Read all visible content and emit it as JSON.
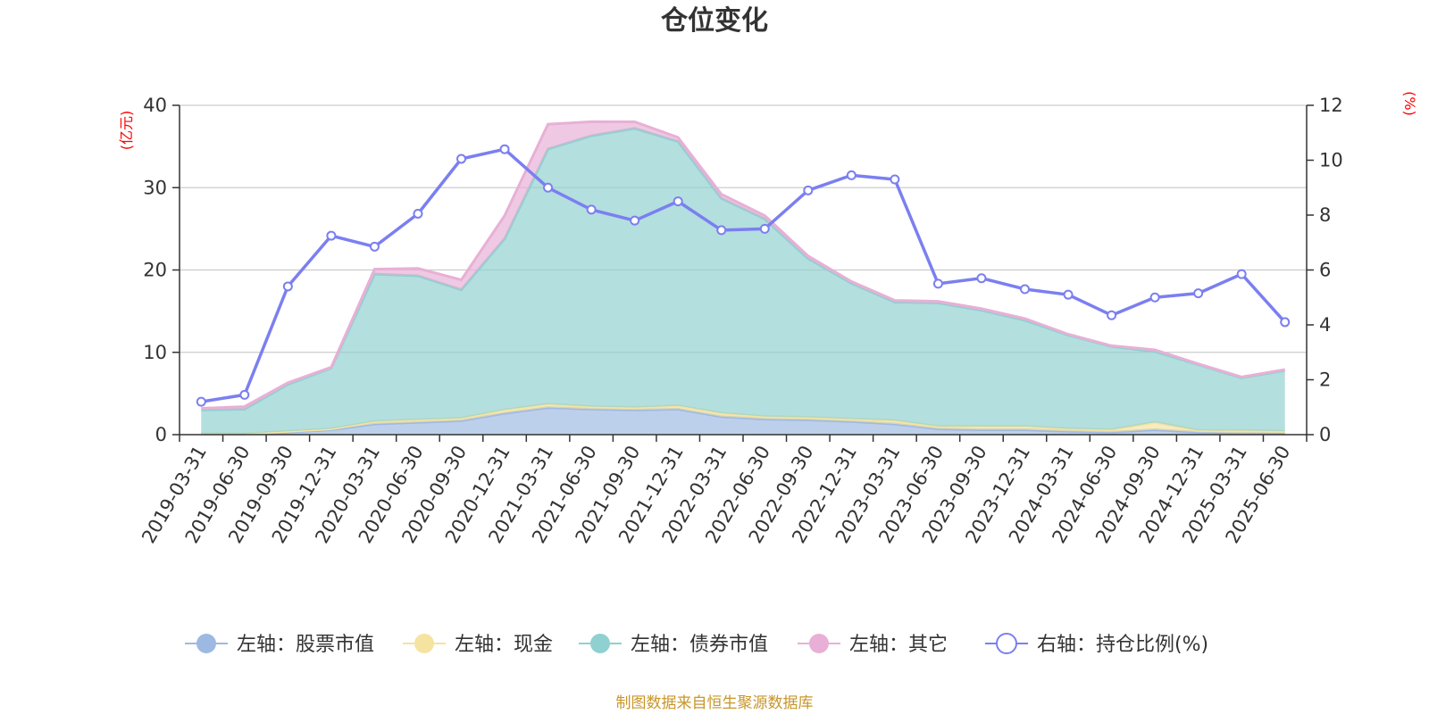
{
  "chart_data": {
    "type": "area",
    "title": "仓位变化",
    "left_unit": "(亿元)",
    "right_unit": "(%)",
    "source": "制图数据来自恒生聚源数据库",
    "x": [
      "2019-03-31",
      "2019-06-30",
      "2019-09-30",
      "2019-12-31",
      "2020-03-31",
      "2020-06-30",
      "2020-09-30",
      "2020-12-31",
      "2021-03-31",
      "2021-06-30",
      "2021-09-30",
      "2021-12-31",
      "2022-03-31",
      "2022-06-30",
      "2022-09-30",
      "2022-12-31",
      "2023-03-31",
      "2023-06-30",
      "2023-09-30",
      "2023-12-31",
      "2024-03-31",
      "2024-06-30",
      "2024-09-30",
      "2024-12-31",
      "2025-03-31",
      "2025-06-30"
    ],
    "yleft": {
      "lim": [
        0,
        40
      ],
      "ticks": [
        "0",
        "10",
        "20",
        "30",
        "40"
      ]
    },
    "yright": {
      "lim": [
        0,
        12
      ],
      "ticks": [
        "0",
        "2",
        "4",
        "6",
        "8",
        "10",
        "12"
      ]
    },
    "grid": true,
    "legend_position": "bottom",
    "series": [
      {
        "name": "左轴：股票市值",
        "axis": "left",
        "kind": "stacked-area",
        "color": "#9db9e2",
        "values": [
          0.1,
          0.1,
          0.3,
          0.6,
          1.3,
          1.5,
          1.7,
          2.6,
          3.3,
          3.1,
          3.0,
          3.1,
          2.2,
          1.9,
          1.8,
          1.6,
          1.3,
          0.7,
          0.6,
          0.6,
          0.4,
          0.3,
          0.6,
          0.3,
          0.2,
          0.2
        ]
      },
      {
        "name": "左轴：现金",
        "axis": "left",
        "kind": "stacked-area",
        "color": "#f5e3a0",
        "values": [
          0.0,
          0.0,
          0.1,
          0.1,
          0.3,
          0.3,
          0.3,
          0.4,
          0.4,
          0.3,
          0.3,
          0.4,
          0.4,
          0.3,
          0.3,
          0.3,
          0.4,
          0.3,
          0.4,
          0.4,
          0.3,
          0.3,
          0.9,
          0.2,
          0.3,
          0.2
        ]
      },
      {
        "name": "左轴：债券市值",
        "axis": "left",
        "kind": "stacked-area",
        "color": "#8fd0d0",
        "values": [
          2.9,
          3.0,
          5.7,
          7.4,
          17.9,
          17.5,
          15.6,
          20.8,
          31.0,
          32.9,
          33.9,
          32.1,
          26.1,
          24.0,
          19.3,
          16.5,
          14.4,
          15.0,
          14.1,
          12.9,
          11.4,
          10.1,
          8.6,
          8.0,
          6.4,
          7.4
        ]
      },
      {
        "name": "左轴：其它",
        "axis": "left",
        "kind": "stacked-area",
        "color": "#e8b0d6",
        "values": [
          0.2,
          0.3,
          0.2,
          0.1,
          0.6,
          0.9,
          1.2,
          2.8,
          3.0,
          1.7,
          0.8,
          0.5,
          0.5,
          0.4,
          0.3,
          0.2,
          0.2,
          0.2,
          0.2,
          0.2,
          0.1,
          0.1,
          0.2,
          0.1,
          0.1,
          0.1
        ]
      },
      {
        "name": "右轴：持仓比例(%)",
        "axis": "right",
        "kind": "line",
        "color": "#7b7ff0",
        "values": [
          1.2,
          1.45,
          5.4,
          7.25,
          6.85,
          8.05,
          10.05,
          10.4,
          9.0,
          8.2,
          7.8,
          8.5,
          7.45,
          7.5,
          8.9,
          9.45,
          9.3,
          5.5,
          5.7,
          5.3,
          5.1,
          4.35,
          5.0,
          5.15,
          5.85,
          4.1
        ]
      }
    ]
  }
}
